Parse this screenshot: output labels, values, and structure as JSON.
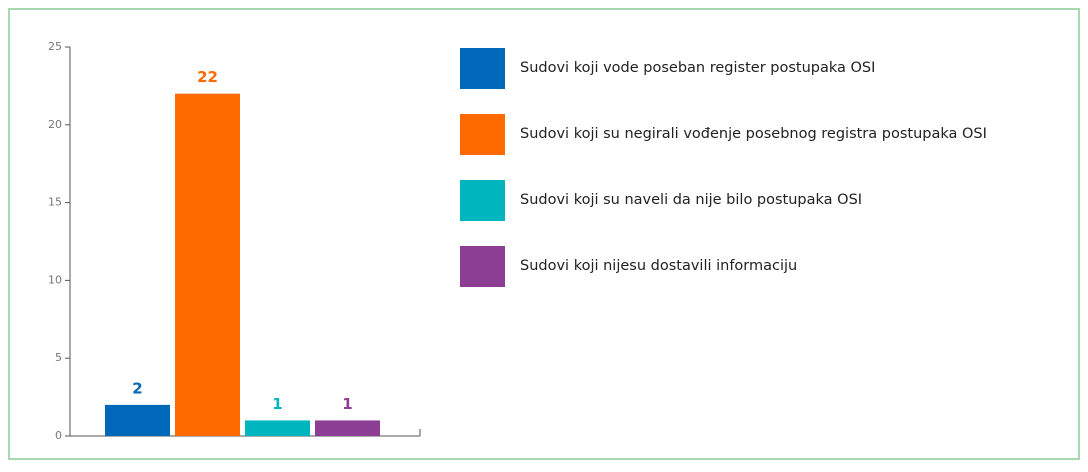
{
  "chart_data": {
    "type": "bar",
    "categories": [
      null
    ],
    "series": [
      {
        "name": "Sudovi koji vode poseban register postupaka OSI",
        "color": "#0068b8",
        "values": [
          2
        ]
      },
      {
        "name": "Sudovi koji su negirali vođenje posebnog registra postupaka OSI",
        "color": "#ff6a00",
        "values": [
          22
        ]
      },
      {
        "name": "Sudovi koji su naveli da nije bilo postupaka OSI",
        "color": "#00b5bd",
        "values": [
          1
        ]
      },
      {
        "name": "Sudovi koji nijesu dostavili informaciju",
        "color": "#8c3d94",
        "values": [
          1
        ]
      }
    ],
    "ylim": [
      0,
      25
    ],
    "yticks": [
      0,
      5,
      10,
      15,
      20,
      25
    ],
    "legend": "right"
  }
}
